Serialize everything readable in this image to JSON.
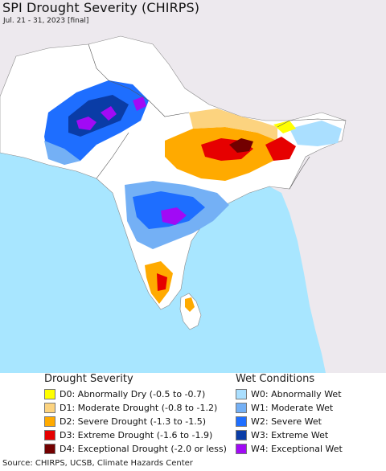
{
  "header": {
    "title": "SPI Drought Severity (CHIRPS)",
    "subtitle": "Jul. 21 - 31, 2023 [final]"
  },
  "legend": {
    "drought": {
      "heading": "Drought Severity",
      "items": [
        {
          "code": "D0",
          "label": "D0: Abnormally Dry (-0.5 to -0.7)",
          "color": "#ffff00"
        },
        {
          "code": "D1",
          "label": "D1: Moderate Drought (-0.8 to -1.2)",
          "color": "#fcd37f"
        },
        {
          "code": "D2",
          "label": "D2: Severe Drought (-1.3 to -1.5)",
          "color": "#ffaa00"
        },
        {
          "code": "D3",
          "label": "D3: Extreme Drought (-1.6 to -1.9)",
          "color": "#e60000"
        },
        {
          "code": "D4",
          "label": "D4: Exceptional Drought (-2.0 or less)",
          "color": "#730000"
        }
      ]
    },
    "wet": {
      "heading": "Wet Conditions",
      "items": [
        {
          "code": "W0",
          "label": "W0: Abnormally Wet",
          "color": "#aadfff"
        },
        {
          "code": "W1",
          "label": "W1: Moderate Wet",
          "color": "#74b0f5"
        },
        {
          "code": "W2",
          "label": "W2: Severe Wet",
          "color": "#1e6eff"
        },
        {
          "code": "W3",
          "label": "W3: Extreme Wet",
          "color": "#0a3ca6"
        },
        {
          "code": "W4",
          "label": "W4: Exceptional Wet",
          "color": "#a10af5"
        }
      ]
    }
  },
  "map": {
    "ocean_color": "#a8e6ff",
    "land_outside_color": "#ede9ee",
    "near_normal_color": "#ffffff"
  },
  "footer": {
    "source": "Source: CHIRPS, UCSB, Climate Hazards Center"
  }
}
